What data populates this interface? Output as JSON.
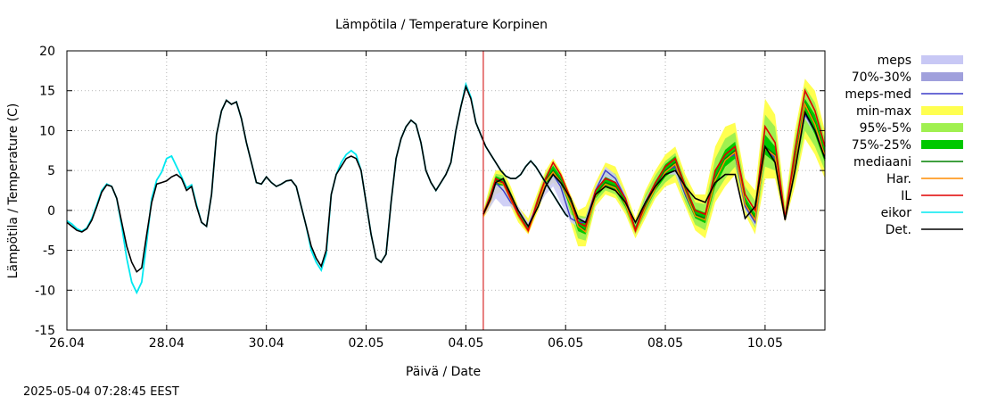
{
  "chart_data": {
    "type": "line",
    "title": "Lämpötila / Temperature   Korpinen",
    "xlabel": "Päivä / Date",
    "ylabel": "Lämpötila / Temperature (C)",
    "timestamp": "2025-05-04  07:28:45 EEST",
    "xlim": [
      0,
      15.2
    ],
    "ylim": [
      -15,
      20
    ],
    "x_ticks": [
      {
        "x": 0,
        "label": "26.04"
      },
      {
        "x": 2,
        "label": "28.04"
      },
      {
        "x": 4,
        "label": "30.04"
      },
      {
        "x": 6,
        "label": "02.05"
      },
      {
        "x": 8,
        "label": "04.05"
      },
      {
        "x": 10,
        "label": "06.05"
      },
      {
        "x": 12,
        "label": "08.05"
      },
      {
        "x": 14,
        "label": "10.05"
      }
    ],
    "y_ticks": [
      -15,
      -10,
      -5,
      0,
      5,
      10,
      15,
      20
    ],
    "grid": true,
    "forecast_start_x": 8.35,
    "legend": [
      {
        "label": "meps",
        "kind": "band",
        "color": "#c8c8f5"
      },
      {
        "label": "70%-30%",
        "kind": "band",
        "color": "#a0a0dc"
      },
      {
        "label": "meps-med",
        "kind": "line",
        "color": "#3c3cc8"
      },
      {
        "label": "min-max",
        "kind": "band",
        "color": "#ffff50"
      },
      {
        "label": "95%-5%",
        "kind": "band",
        "color": "#a0f050"
      },
      {
        "label": "75%-25%",
        "kind": "band",
        "color": "#00c800"
      },
      {
        "label": "mediaani",
        "kind": "line",
        "color": "#008000"
      },
      {
        "label": "Har.",
        "kind": "line",
        "color": "#ff8c00"
      },
      {
        "label": "IL",
        "kind": "line",
        "color": "#e00000"
      },
      {
        "label": "eikor",
        "kind": "line",
        "color": "#00e8f0"
      },
      {
        "label": "Det.",
        "kind": "line",
        "color": "#000000"
      }
    ],
    "observed_det": [
      [
        0.0,
        -1.5
      ],
      [
        0.1,
        -2.0
      ],
      [
        0.2,
        -2.5
      ],
      [
        0.3,
        -2.7
      ],
      [
        0.4,
        -2.3
      ],
      [
        0.5,
        -1.2
      ],
      [
        0.6,
        0.5
      ],
      [
        0.7,
        2.3
      ],
      [
        0.8,
        3.2
      ],
      [
        0.9,
        3.0
      ],
      [
        1.0,
        1.5
      ],
      [
        1.1,
        -1.5
      ],
      [
        1.2,
        -4.5
      ],
      [
        1.3,
        -6.5
      ],
      [
        1.4,
        -7.7
      ],
      [
        1.5,
        -7.2
      ],
      [
        1.6,
        -3.0
      ],
      [
        1.7,
        1.0
      ],
      [
        1.8,
        3.3
      ],
      [
        1.9,
        3.5
      ],
      [
        2.0,
        3.7
      ],
      [
        2.1,
        4.2
      ],
      [
        2.2,
        4.5
      ],
      [
        2.3,
        4.0
      ],
      [
        2.4,
        2.5
      ],
      [
        2.5,
        3.0
      ],
      [
        2.6,
        0.5
      ],
      [
        2.7,
        -1.5
      ],
      [
        2.8,
        -2.0
      ],
      [
        2.9,
        2.0
      ],
      [
        3.0,
        9.5
      ],
      [
        3.1,
        12.5
      ],
      [
        3.2,
        13.8
      ],
      [
        3.3,
        13.3
      ],
      [
        3.4,
        13.6
      ],
      [
        3.5,
        11.5
      ],
      [
        3.6,
        8.5
      ],
      [
        3.7,
        6.0
      ],
      [
        3.8,
        3.5
      ],
      [
        3.9,
        3.3
      ],
      [
        4.0,
        4.2
      ],
      [
        4.1,
        3.5
      ],
      [
        4.2,
        3.0
      ],
      [
        4.3,
        3.3
      ],
      [
        4.4,
        3.7
      ],
      [
        4.5,
        3.8
      ],
      [
        4.6,
        3.0
      ],
      [
        4.7,
        0.5
      ],
      [
        4.8,
        -2.0
      ],
      [
        4.9,
        -4.5
      ],
      [
        5.0,
        -6.0
      ],
      [
        5.1,
        -7.0
      ],
      [
        5.2,
        -5.0
      ],
      [
        5.3,
        2.0
      ],
      [
        5.4,
        4.5
      ],
      [
        5.5,
        5.5
      ],
      [
        5.6,
        6.5
      ],
      [
        5.7,
        6.8
      ],
      [
        5.8,
        6.5
      ],
      [
        5.9,
        5.0
      ],
      [
        6.0,
        1.0
      ],
      [
        6.1,
        -3.0
      ],
      [
        6.2,
        -6.0
      ],
      [
        6.3,
        -6.5
      ],
      [
        6.4,
        -5.5
      ],
      [
        6.5,
        1.0
      ],
      [
        6.6,
        6.5
      ],
      [
        6.7,
        9.0
      ],
      [
        6.8,
        10.5
      ],
      [
        6.9,
        11.3
      ],
      [
        7.0,
        10.8
      ],
      [
        7.1,
        8.5
      ],
      [
        7.2,
        5.0
      ],
      [
        7.3,
        3.5
      ],
      [
        7.4,
        2.5
      ],
      [
        7.5,
        3.5
      ],
      [
        7.6,
        4.5
      ],
      [
        7.7,
        6.0
      ],
      [
        7.8,
        10.0
      ],
      [
        7.9,
        13.0
      ],
      [
        8.0,
        15.5
      ],
      [
        8.1,
        14.0
      ],
      [
        8.2,
        11.0
      ],
      [
        8.3,
        9.5
      ],
      [
        8.4,
        8.0
      ],
      [
        8.5,
        7.0
      ],
      [
        8.6,
        6.0
      ],
      [
        8.7,
        5.0
      ],
      [
        8.8,
        4.3
      ],
      [
        8.9,
        4.0
      ],
      [
        9.0,
        4.0
      ],
      [
        9.1,
        4.5
      ],
      [
        9.2,
        5.5
      ],
      [
        9.3,
        6.2
      ],
      [
        9.4,
        5.5
      ],
      [
        9.5,
        4.5
      ],
      [
        9.6,
        3.5
      ],
      [
        9.7,
        2.5
      ],
      [
        9.8,
        1.5
      ],
      [
        9.9,
        0.5
      ],
      [
        10.0,
        -0.5
      ],
      [
        10.05,
        -0.8
      ]
    ],
    "observed_eikor": [
      [
        0.0,
        -1.3
      ],
      [
        0.1,
        -1.7
      ],
      [
        0.2,
        -2.3
      ],
      [
        0.3,
        -2.6
      ],
      [
        0.4,
        -2.2
      ],
      [
        0.5,
        -1.0
      ],
      [
        0.6,
        0.7
      ],
      [
        0.7,
        2.5
      ],
      [
        0.8,
        3.3
      ],
      [
        0.9,
        3.0
      ],
      [
        1.0,
        1.5
      ],
      [
        1.1,
        -2.0
      ],
      [
        1.2,
        -6.0
      ],
      [
        1.3,
        -9.0
      ],
      [
        1.4,
        -10.3
      ],
      [
        1.5,
        -9.0
      ],
      [
        1.6,
        -4.0
      ],
      [
        1.7,
        1.5
      ],
      [
        1.8,
        3.8
      ],
      [
        1.9,
        4.8
      ],
      [
        2.0,
        6.5
      ],
      [
        2.1,
        6.8
      ],
      [
        2.2,
        5.5
      ],
      [
        2.3,
        4.2
      ],
      [
        2.4,
        2.8
      ],
      [
        2.5,
        3.2
      ],
      [
        2.6,
        0.7
      ],
      [
        2.7,
        -1.5
      ],
      [
        2.8,
        -2.0
      ],
      [
        2.9,
        2.0
      ],
      [
        3.0,
        9.5
      ],
      [
        3.1,
        12.5
      ],
      [
        3.2,
        13.8
      ],
      [
        3.3,
        13.3
      ],
      [
        3.4,
        13.6
      ],
      [
        3.5,
        11.5
      ],
      [
        3.6,
        8.5
      ],
      [
        3.7,
        6.0
      ],
      [
        3.8,
        3.5
      ],
      [
        3.9,
        3.3
      ],
      [
        4.0,
        4.2
      ],
      [
        4.1,
        3.5
      ],
      [
        4.2,
        3.0
      ],
      [
        4.3,
        3.3
      ],
      [
        4.4,
        3.7
      ],
      [
        4.5,
        3.8
      ],
      [
        4.6,
        3.0
      ],
      [
        4.7,
        0.5
      ],
      [
        4.8,
        -2.0
      ],
      [
        4.9,
        -5.0
      ],
      [
        5.0,
        -6.5
      ],
      [
        5.1,
        -7.5
      ],
      [
        5.2,
        -5.5
      ],
      [
        5.3,
        2.0
      ],
      [
        5.4,
        4.5
      ],
      [
        5.5,
        6.0
      ],
      [
        5.6,
        7.0
      ],
      [
        5.7,
        7.5
      ],
      [
        5.8,
        7.0
      ],
      [
        5.9,
        5.0
      ],
      [
        6.0,
        1.0
      ],
      [
        6.1,
        -3.0
      ],
      [
        6.2,
        -6.0
      ],
      [
        6.3,
        -6.5
      ],
      [
        6.4,
        -5.5
      ],
      [
        6.5,
        1.0
      ],
      [
        6.6,
        6.5
      ],
      [
        6.7,
        9.0
      ],
      [
        6.8,
        10.5
      ],
      [
        6.9,
        11.3
      ],
      [
        7.0,
        10.8
      ],
      [
        7.1,
        8.5
      ],
      [
        7.2,
        5.0
      ],
      [
        7.3,
        3.5
      ],
      [
        7.4,
        2.5
      ],
      [
        7.5,
        3.5
      ],
      [
        7.6,
        4.5
      ],
      [
        7.7,
        6.0
      ],
      [
        7.8,
        10.0
      ],
      [
        7.9,
        13.0
      ],
      [
        8.0,
        15.8
      ],
      [
        8.1,
        14.2
      ],
      [
        8.2,
        11.0
      ],
      [
        8.3,
        9.5
      ],
      [
        8.4,
        8.0
      ],
      [
        8.5,
        7.0
      ],
      [
        8.6,
        6.0
      ],
      [
        8.7,
        5.0
      ],
      [
        8.8,
        4.3
      ],
      [
        8.9,
        4.0
      ],
      [
        9.0,
        4.0
      ],
      [
        9.1,
        4.5
      ],
      [
        9.2,
        5.5
      ],
      [
        9.3,
        6.2
      ],
      [
        9.4,
        5.5
      ],
      [
        9.5,
        4.5
      ],
      [
        9.6,
        3.5
      ],
      [
        9.7,
        2.5
      ],
      [
        9.8,
        1.5
      ],
      [
        9.9,
        0.5
      ],
      [
        10.0,
        -0.5
      ],
      [
        10.05,
        -0.8
      ]
    ],
    "forecast": {
      "x": [
        8.35,
        8.5,
        8.6,
        8.75,
        8.9,
        9.05,
        9.25,
        9.45,
        9.6,
        9.75,
        9.9,
        10.1,
        10.25,
        10.4,
        10.6,
        10.8,
        11.0,
        11.2,
        11.4,
        11.6,
        11.8,
        12.0,
        12.2,
        12.4,
        12.6,
        12.8,
        13.0,
        13.2,
        13.4,
        13.6,
        13.8,
        14.0,
        14.2,
        14.4,
        14.6,
        14.8,
        15.0,
        15.2
      ],
      "det": [
        -0.5,
        1.5,
        3.5,
        4.0,
        2.0,
        0.0,
        -2.0,
        0.5,
        3.0,
        4.5,
        3.5,
        1.5,
        -1.0,
        -1.5,
        2.0,
        3.0,
        2.5,
        1.0,
        -1.5,
        1.0,
        3.0,
        4.5,
        5.0,
        3.0,
        1.5,
        1.0,
        3.5,
        4.5,
        4.5,
        -1.0,
        0.5,
        8.0,
        6.0,
        -1.2,
        5.0,
        12.3,
        10.0,
        6.5
      ],
      "median": [
        -0.5,
        1.5,
        3.8,
        3.5,
        1.5,
        -0.5,
        -2.5,
        1.0,
        3.8,
        5.0,
        3.8,
        1.0,
        -1.8,
        -2.5,
        2.0,
        3.5,
        3.0,
        1.0,
        -2.5,
        0.5,
        3.0,
        5.0,
        6.0,
        2.5,
        -0.5,
        -1.0,
        4.0,
        6.5,
        7.5,
        1.0,
        -1.0,
        8.0,
        7.0,
        -1.0,
        6.0,
        13.5,
        11.0,
        7.0
      ],
      "il": [
        -0.5,
        2.0,
        4.0,
        3.5,
        1.5,
        -0.5,
        -2.5,
        1.5,
        4.0,
        6.0,
        4.5,
        1.5,
        -1.5,
        -2.0,
        2.5,
        4.0,
        3.5,
        1.5,
        -2.5,
        1.0,
        3.5,
        5.5,
        6.5,
        3.0,
        0.0,
        -0.5,
        5.0,
        7.0,
        8.0,
        2.0,
        0.0,
        10.5,
        8.5,
        -1.0,
        7.5,
        15.0,
        12.5,
        8.0
      ],
      "meps_med": [
        -0.5,
        1.5,
        3.5,
        2.5,
        1.0,
        0.0,
        -2.0,
        1.0,
        3.0,
        4.5,
        3.0,
        -1.0,
        -1.5,
        -1.5,
        2.5,
        5.0,
        4.0,
        1.5,
        -2.5,
        1.0,
        3.0,
        5.0,
        5.5,
        2.0,
        -0.5,
        -1.0,
        4.0,
        6.5,
        7.0,
        0.5,
        -1.5,
        8.0,
        6.5,
        -1.0,
        6.0,
        12.0,
        10.0,
        7.0
      ],
      "minmax_low": [
        -1.0,
        0.5,
        2.0,
        2.5,
        0.5,
        -1.5,
        -3.0,
        0.0,
        2.5,
        3.5,
        2.5,
        -1.5,
        -4.5,
        -4.5,
        0.5,
        2.0,
        1.5,
        -0.5,
        -3.5,
        -1.0,
        1.5,
        3.0,
        3.5,
        0.5,
        -2.5,
        -3.5,
        1.0,
        3.0,
        4.5,
        -0.5,
        -3.0,
        4.0,
        4.0,
        -1.5,
        3.0,
        9.0,
        7.0,
        4.0
      ],
      "minmax_high": [
        0.0,
        3.5,
        5.0,
        5.0,
        3.0,
        0.5,
        -1.0,
        2.5,
        5.0,
        6.5,
        5.0,
        2.0,
        0.0,
        0.5,
        3.5,
        6.0,
        5.5,
        2.5,
        -1.0,
        2.5,
        5.0,
        7.0,
        8.0,
        4.5,
        2.0,
        2.0,
        8.0,
        10.5,
        11.0,
        4.0,
        2.5,
        14.0,
        12.0,
        1.0,
        10.0,
        16.5,
        15.0,
        10.0
      ],
      "p95_low": [
        -0.8,
        1.0,
        2.8,
        2.8,
        1.0,
        -1.0,
        -2.8,
        0.5,
        3.0,
        4.0,
        3.0,
        -0.5,
        -3.5,
        -3.8,
        1.0,
        2.5,
        2.0,
        0.0,
        -3.0,
        -0.5,
        2.0,
        3.5,
        4.5,
        1.0,
        -1.8,
        -2.5,
        2.0,
        4.0,
        5.5,
        0.0,
        -2.2,
        5.5,
        5.0,
        -1.2,
        4.0,
        10.0,
        8.0,
        5.0
      ],
      "p95_high": [
        -0.2,
        2.8,
        4.6,
        4.4,
        2.4,
        0.0,
        -1.8,
        2.0,
        4.6,
        6.0,
        4.6,
        1.6,
        -0.6,
        -0.8,
        3.0,
        5.0,
        4.6,
        2.0,
        -1.6,
        2.0,
        4.4,
        6.2,
        7.2,
        3.8,
        1.0,
        0.8,
        6.5,
        9.0,
        9.8,
        3.0,
        1.2,
        12.0,
        10.5,
        0.2,
        9.0,
        15.5,
        13.5,
        9.0
      ],
      "p75_low": [
        -0.6,
        1.2,
        3.2,
        3.1,
        1.2,
        -0.8,
        -2.8,
        0.8,
        3.3,
        4.4,
        3.3,
        0.3,
        -2.6,
        -3.0,
        1.5,
        3.0,
        2.5,
        0.4,
        -2.9,
        0.0,
        2.5,
        4.2,
        5.2,
        1.7,
        -1.0,
        -1.6,
        3.0,
        5.5,
        6.5,
        0.5,
        -1.5,
        7.0,
        6.0,
        -1.1,
        5.0,
        12.0,
        9.5,
        6.0
      ],
      "p75_high": [
        -0.4,
        2.0,
        4.3,
        3.9,
        1.9,
        -0.2,
        -2.2,
        1.4,
        4.2,
        5.6,
        4.3,
        1.5,
        -1.2,
        -1.4,
        2.6,
        4.2,
        3.6,
        1.6,
        -2.0,
        1.2,
        3.6,
        5.8,
        6.8,
        3.3,
        0.2,
        -0.3,
        5.0,
        7.6,
        8.6,
        1.7,
        -0.4,
        9.5,
        8.0,
        -0.8,
        7.0,
        14.0,
        12.0,
        7.8
      ],
      "meps_low": [
        -0.8,
        0.5,
        1.5,
        0.5,
        0.5,
        -0.5,
        -2.3,
        0.5,
        2.0,
        3.0,
        1.0,
        -1.5,
        -2.0,
        -2.0,
        1.5,
        3.5,
        3.0,
        1.0,
        -3.0,
        0.5,
        2.5,
        4.5,
        4.5,
        1.5,
        -1.0,
        -1.5,
        3.5,
        6.0,
        6.5,
        0.0,
        -2.0,
        7.5,
        6.0,
        -1.5,
        5.5,
        11.5,
        9.5,
        6.5
      ],
      "meps_high": [
        -0.3,
        2.0,
        3.8,
        3.5,
        1.5,
        0.5,
        -1.5,
        1.5,
        3.5,
        5.0,
        4.5,
        -0.5,
        -1.0,
        -1.0,
        3.0,
        5.5,
        4.5,
        2.0,
        -2.0,
        1.5,
        3.5,
        5.5,
        6.0,
        2.5,
        0.0,
        -0.5,
        4.5,
        7.0,
        7.5,
        1.0,
        -1.0,
        8.5,
        7.0,
        -0.5,
        6.5,
        12.5,
        10.5,
        7.5
      ]
    }
  }
}
